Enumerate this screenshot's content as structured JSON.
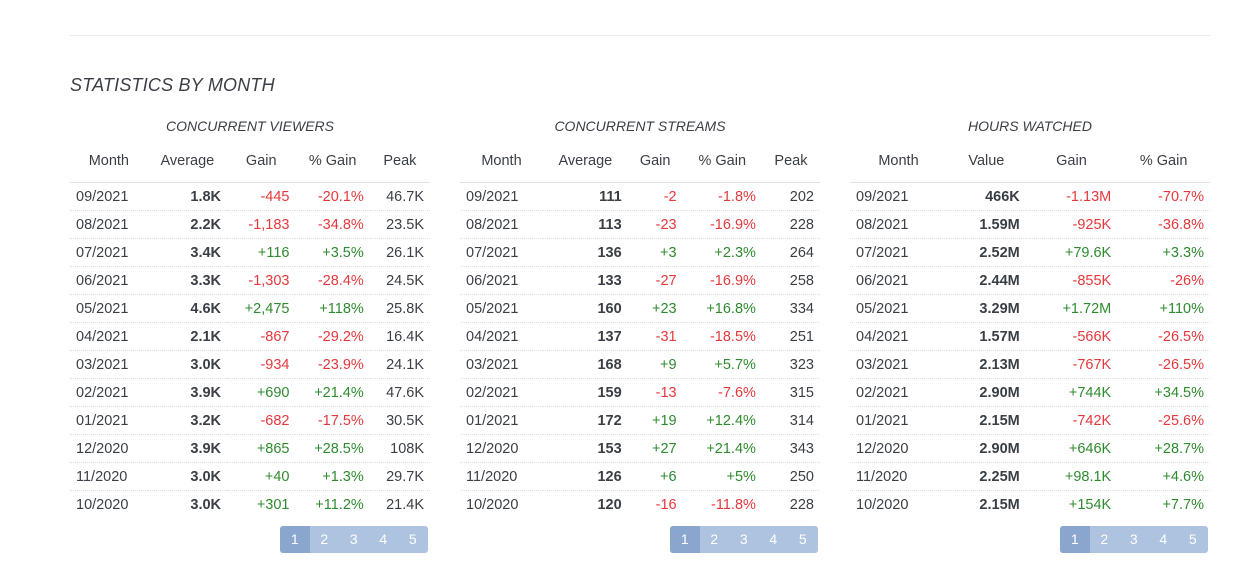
{
  "section_title": "STATISTICS BY MONTH",
  "panels": [
    {
      "title": "CONCURRENT VIEWERS",
      "headers": [
        "Month",
        "Average",
        "Gain",
        "% Gain",
        "Peak"
      ],
      "rows": [
        [
          "09/2021",
          "1.8K",
          "-445",
          "-20.1%",
          "46.7K"
        ],
        [
          "08/2021",
          "2.2K",
          "-1,183",
          "-34.8%",
          "23.5K"
        ],
        [
          "07/2021",
          "3.4K",
          "+116",
          "+3.5%",
          "26.1K"
        ],
        [
          "06/2021",
          "3.3K",
          "-1,303",
          "-28.4%",
          "24.5K"
        ],
        [
          "05/2021",
          "4.6K",
          "+2,475",
          "+118%",
          "25.8K"
        ],
        [
          "04/2021",
          "2.1K",
          "-867",
          "-29.2%",
          "16.4K"
        ],
        [
          "03/2021",
          "3.0K",
          "-934",
          "-23.9%",
          "24.1K"
        ],
        [
          "02/2021",
          "3.9K",
          "+690",
          "+21.4%",
          "47.6K"
        ],
        [
          "01/2021",
          "3.2K",
          "-682",
          "-17.5%",
          "30.5K"
        ],
        [
          "12/2020",
          "3.9K",
          "+865",
          "+28.5%",
          "108K"
        ],
        [
          "11/2020",
          "3.0K",
          "+40",
          "+1.3%",
          "29.7K"
        ],
        [
          "10/2020",
          "3.0K",
          "+301",
          "+11.2%",
          "21.4K"
        ]
      ],
      "pages": [
        "1",
        "2",
        "3",
        "4",
        "5"
      ],
      "active_page": "1"
    },
    {
      "title": "CONCURRENT STREAMS",
      "headers": [
        "Month",
        "Average",
        "Gain",
        "% Gain",
        "Peak"
      ],
      "rows": [
        [
          "09/2021",
          "111",
          "-2",
          "-1.8%",
          "202"
        ],
        [
          "08/2021",
          "113",
          "-23",
          "-16.9%",
          "228"
        ],
        [
          "07/2021",
          "136",
          "+3",
          "+2.3%",
          "264"
        ],
        [
          "06/2021",
          "133",
          "-27",
          "-16.9%",
          "258"
        ],
        [
          "05/2021",
          "160",
          "+23",
          "+16.8%",
          "334"
        ],
        [
          "04/2021",
          "137",
          "-31",
          "-18.5%",
          "251"
        ],
        [
          "03/2021",
          "168",
          "+9",
          "+5.7%",
          "323"
        ],
        [
          "02/2021",
          "159",
          "-13",
          "-7.6%",
          "315"
        ],
        [
          "01/2021",
          "172",
          "+19",
          "+12.4%",
          "314"
        ],
        [
          "12/2020",
          "153",
          "+27",
          "+21.4%",
          "343"
        ],
        [
          "11/2020",
          "126",
          "+6",
          "+5%",
          "250"
        ],
        [
          "10/2020",
          "120",
          "-16",
          "-11.8%",
          "228"
        ]
      ],
      "pages": [
        "1",
        "2",
        "3",
        "4",
        "5"
      ],
      "active_page": "1"
    },
    {
      "title": "HOURS WATCHED",
      "headers": [
        "Month",
        "Value",
        "Gain",
        "% Gain"
      ],
      "rows": [
        [
          "09/2021",
          "466K",
          "-1.13M",
          "-70.7%"
        ],
        [
          "08/2021",
          "1.59M",
          "-925K",
          "-36.8%"
        ],
        [
          "07/2021",
          "2.52M",
          "+79.6K",
          "+3.3%"
        ],
        [
          "06/2021",
          "2.44M",
          "-855K",
          "-26%"
        ],
        [
          "05/2021",
          "3.29M",
          "+1.72M",
          "+110%"
        ],
        [
          "04/2021",
          "1.57M",
          "-566K",
          "-26.5%"
        ],
        [
          "03/2021",
          "2.13M",
          "-767K",
          "-26.5%"
        ],
        [
          "02/2021",
          "2.90M",
          "+744K",
          "+34.5%"
        ],
        [
          "01/2021",
          "2.15M",
          "-742K",
          "-25.6%"
        ],
        [
          "12/2020",
          "2.90M",
          "+646K",
          "+28.7%"
        ],
        [
          "11/2020",
          "2.25M",
          "+98.1K",
          "+4.6%"
        ],
        [
          "10/2020",
          "2.15M",
          "+154K",
          "+7.7%"
        ]
      ],
      "pages": [
        "1",
        "2",
        "3",
        "4",
        "5"
      ],
      "active_page": "1"
    }
  ],
  "colors": {
    "negative": "#e5383b",
    "positive": "#2e8b2e",
    "pager_bg": "#aec3df",
    "pager_active": "#8aa6cf"
  }
}
